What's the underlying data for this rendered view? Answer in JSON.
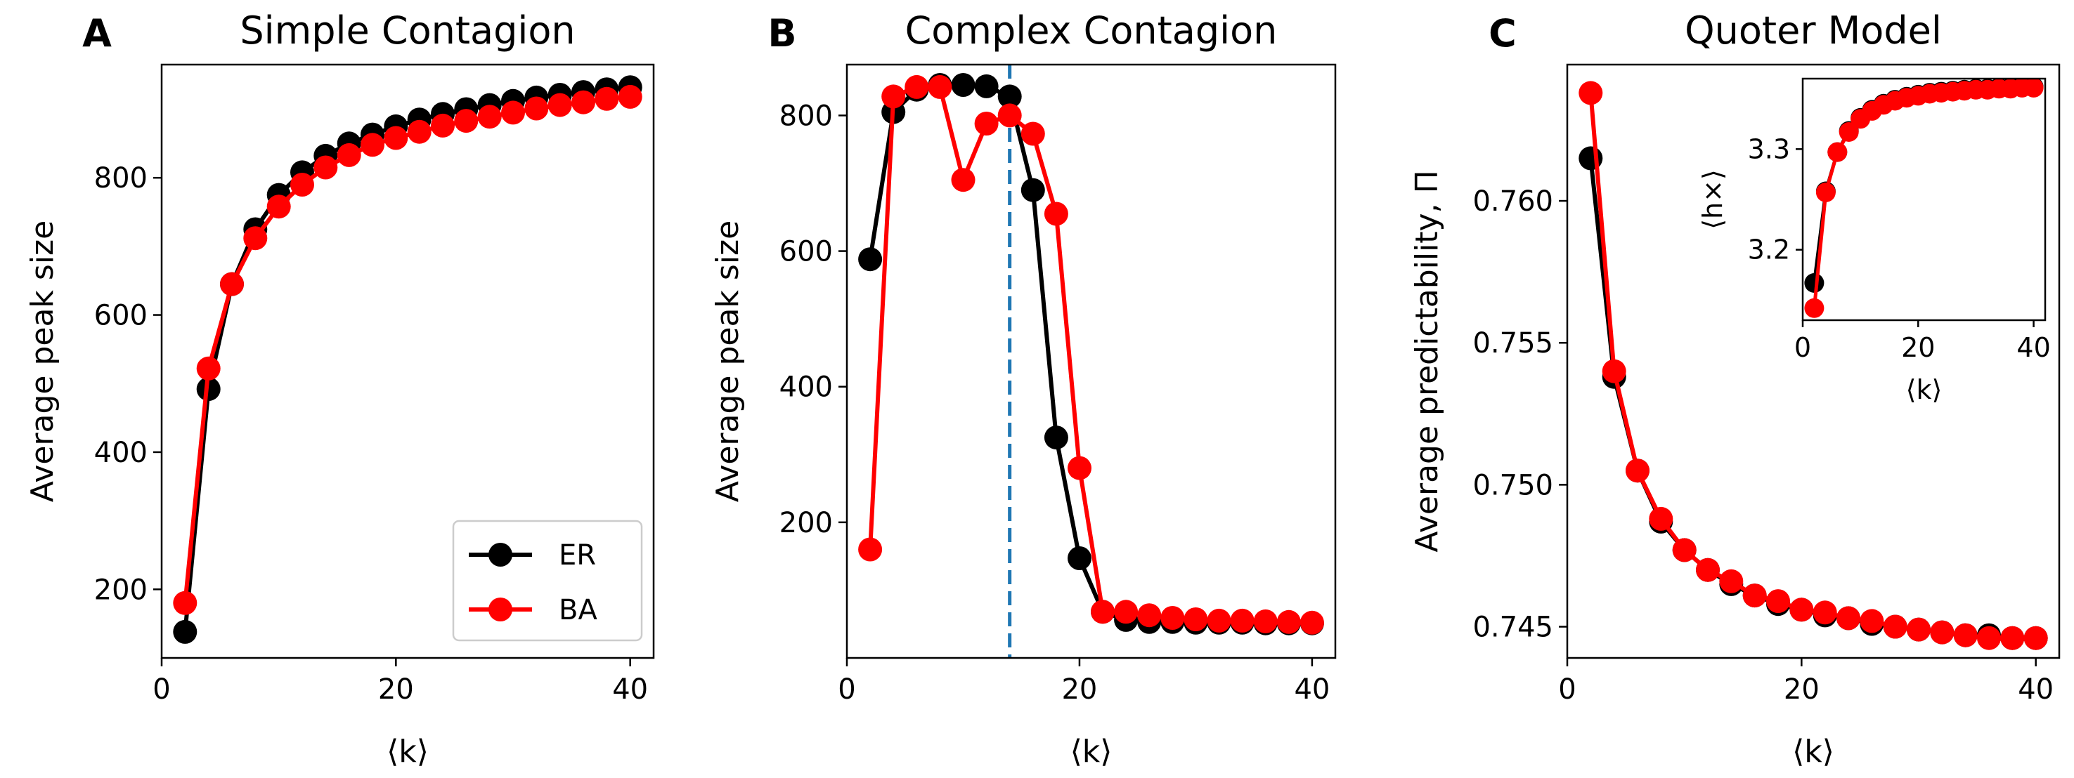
{
  "colors": {
    "ER": "#000000",
    "BA": "#ff0000",
    "threshold": "#1f77b4"
  },
  "legend": {
    "placement": "lower-right",
    "entries": [
      "ER",
      "BA"
    ]
  },
  "chart_data": [
    {
      "type": "line",
      "letter": "A",
      "title": "Simple Contagion",
      "xlabel": "⟨k⟩",
      "ylabel": "Average peak size",
      "xlim": [
        0,
        42
      ],
      "ylim": [
        100,
        965
      ],
      "xticks": [
        0,
        20,
        40
      ],
      "yticks": [
        200,
        400,
        600,
        800
      ],
      "x": [
        2,
        4,
        6,
        8,
        10,
        12,
        14,
        16,
        18,
        20,
        22,
        24,
        26,
        28,
        30,
        32,
        34,
        36,
        38,
        40
      ],
      "series": [
        {
          "name": "ER",
          "color": "#000000",
          "values": [
            138,
            492,
            645,
            725,
            775,
            808,
            832,
            850,
            863,
            875,
            885,
            893,
            900,
            906,
            912,
            917,
            921,
            925,
            929,
            932
          ]
        },
        {
          "name": "BA",
          "color": "#ff0000",
          "values": [
            180,
            522,
            645,
            712,
            758,
            790,
            815,
            833,
            848,
            858,
            867,
            876,
            883,
            889,
            895,
            901,
            906,
            910,
            915,
            918
          ]
        }
      ]
    },
    {
      "type": "line",
      "letter": "B",
      "title": "Complex Contagion",
      "xlabel": "⟨k⟩",
      "ylabel": "Average peak size",
      "xlim": [
        0,
        42
      ],
      "ylim": [
        0,
        875
      ],
      "xticks": [
        0,
        20,
        40
      ],
      "yticks": [
        200,
        400,
        600,
        800
      ],
      "vline": 14,
      "x": [
        2,
        4,
        6,
        8,
        10,
        12,
        14,
        16,
        18,
        20,
        22,
        24,
        26,
        28,
        30,
        32,
        34,
        36,
        38,
        40
      ],
      "series": [
        {
          "name": "ER",
          "color": "#000000",
          "values": [
            588,
            805,
            838,
            845,
            845,
            843,
            828,
            690,
            325,
            147,
            68,
            56,
            53,
            53,
            52,
            52,
            52,
            51,
            51,
            51
          ]
        },
        {
          "name": "BA",
          "color": "#ff0000",
          "values": [
            160,
            828,
            842,
            842,
            705,
            788,
            800,
            773,
            655,
            280,
            68,
            68,
            63,
            59,
            57,
            55,
            55,
            54,
            53,
            52
          ]
        }
      ]
    },
    {
      "type": "line",
      "letter": "C",
      "title": "Quoter Model",
      "xlabel": "⟨k⟩",
      "ylabel": "Average predictability, Π",
      "xlim": [
        0,
        42
      ],
      "ylim": [
        0.7439,
        0.7648
      ],
      "xticks": [
        0,
        20,
        40
      ],
      "yticks": [
        "0.745",
        "0.750",
        "0.755",
        "0.760"
      ],
      "x": [
        2,
        4,
        6,
        8,
        10,
        12,
        14,
        16,
        18,
        20,
        22,
        24,
        26,
        28,
        30,
        32,
        34,
        36,
        38,
        40
      ],
      "series": [
        {
          "name": "ER",
          "color": "#000000",
          "values": [
            0.7615,
            0.7538,
            0.7505,
            0.7487,
            0.7477,
            0.747,
            0.7465,
            0.7461,
            0.7458,
            0.7456,
            0.7454,
            0.7453,
            0.7451,
            0.745,
            0.7449,
            0.7448,
            0.7447,
            0.7447,
            0.7446,
            0.7446
          ]
        },
        {
          "name": "BA",
          "color": "#ff0000",
          "values": [
            0.7638,
            0.754,
            0.7505,
            0.7488,
            0.7477,
            0.747,
            0.7466,
            0.7461,
            0.7459,
            0.7456,
            0.7455,
            0.7453,
            0.7452,
            0.745,
            0.7449,
            0.7448,
            0.7447,
            0.7446,
            0.7446,
            0.7446
          ]
        }
      ],
      "inset": {
        "xlabel": "⟨k⟩",
        "ylabel": "⟨h×⟩",
        "xlim": [
          0,
          42
        ],
        "ylim": [
          3.13,
          3.37
        ],
        "xticks": [
          0,
          20,
          40
        ],
        "yticks": [
          "3.2",
          "3.3"
        ],
        "series": [
          {
            "name": "ER",
            "color": "#000000",
            "values": [
              3.167,
              3.258,
              3.297,
              3.318,
              3.331,
              3.339,
              3.345,
              3.349,
              3.352,
              3.354,
              3.356,
              3.357,
              3.358,
              3.359,
              3.36,
              3.36,
              3.361,
              3.361,
              3.362,
              3.362
            ]
          },
          {
            "name": "BA",
            "color": "#ff0000",
            "values": [
              3.142,
              3.257,
              3.297,
              3.317,
              3.33,
              3.338,
              3.344,
              3.348,
              3.351,
              3.353,
              3.355,
              3.356,
              3.357,
              3.358,
              3.359,
              3.359,
              3.36,
              3.36,
              3.361,
              3.361
            ]
          }
        ]
      }
    }
  ]
}
